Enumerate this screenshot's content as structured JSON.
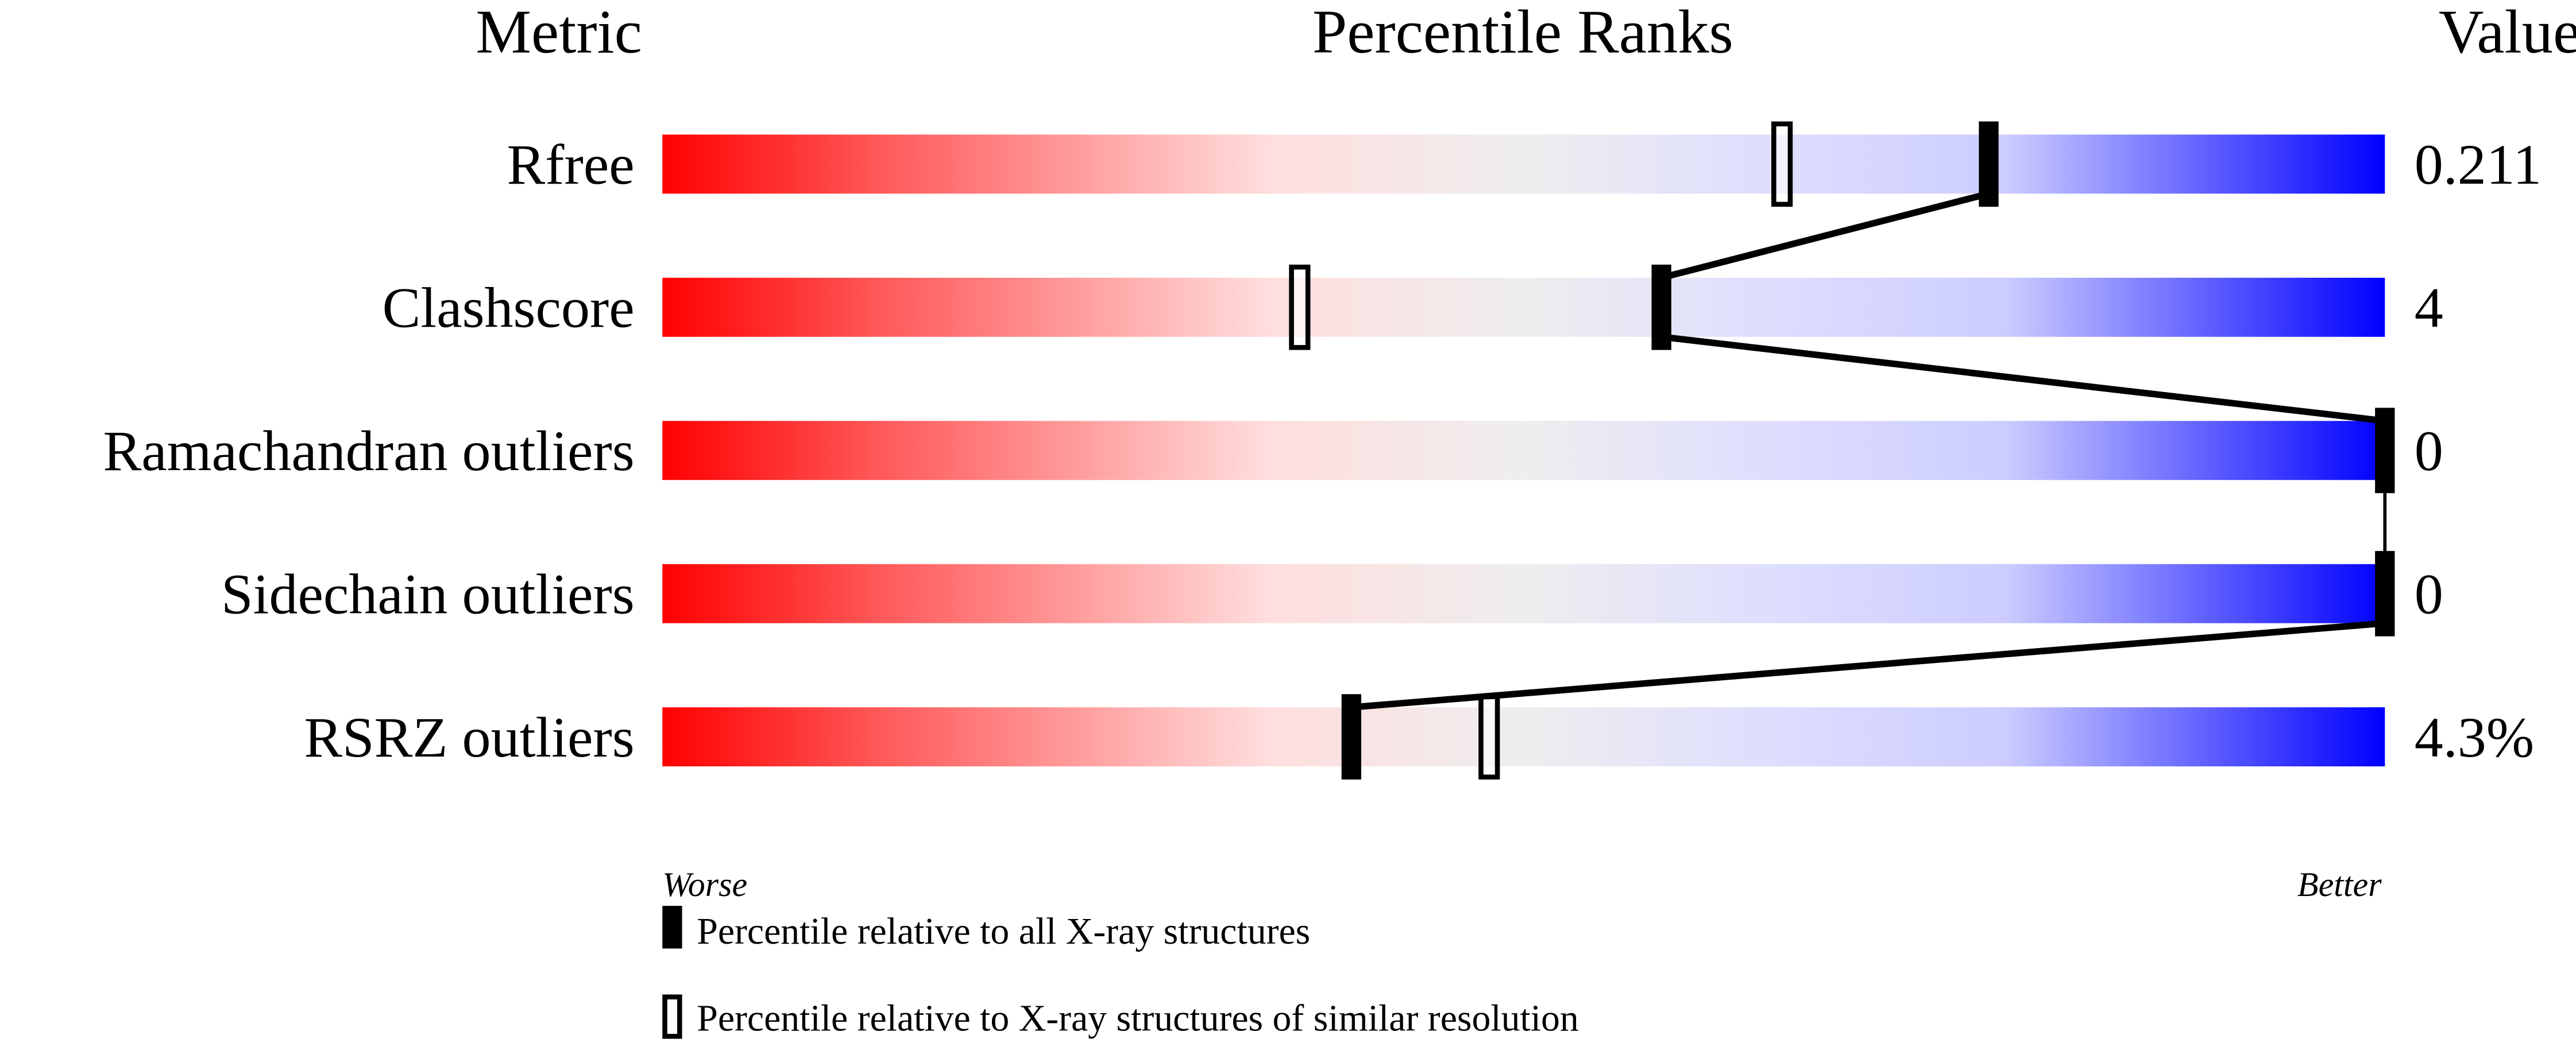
{
  "chart_data": {
    "type": "table",
    "headers": {
      "metric": "Metric",
      "ranks": "Percentile Ranks",
      "value": "Value"
    },
    "x_range": [
      0,
      100
    ],
    "scale_labels": {
      "low": "Worse",
      "high": "Better"
    },
    "rows": [
      {
        "metric": "Rfree",
        "value": "0.211",
        "percentile_all": 77,
        "percentile_similar": 65
      },
      {
        "metric": "Clashscore",
        "value": "4",
        "percentile_all": 58,
        "percentile_similar": 37
      },
      {
        "metric": "Ramachandran outliers",
        "value": "0",
        "percentile_all": 100,
        "percentile_similar": null
      },
      {
        "metric": "Sidechain outliers",
        "value": "0",
        "percentile_all": 100,
        "percentile_similar": null
      },
      {
        "metric": "RSRZ outliers",
        "value": "4.3%",
        "percentile_all": 40,
        "percentile_similar": 48
      }
    ],
    "legend": [
      {
        "marker": "filled",
        "label": "Percentile relative to all X-ray structures"
      },
      {
        "marker": "open",
        "label": "Percentile relative to X-ray structures of similar resolution"
      }
    ],
    "colors": {
      "worse": "#ff0000",
      "mid": "#eeeeee",
      "better": "#0000ff",
      "marker": "#000000"
    }
  }
}
